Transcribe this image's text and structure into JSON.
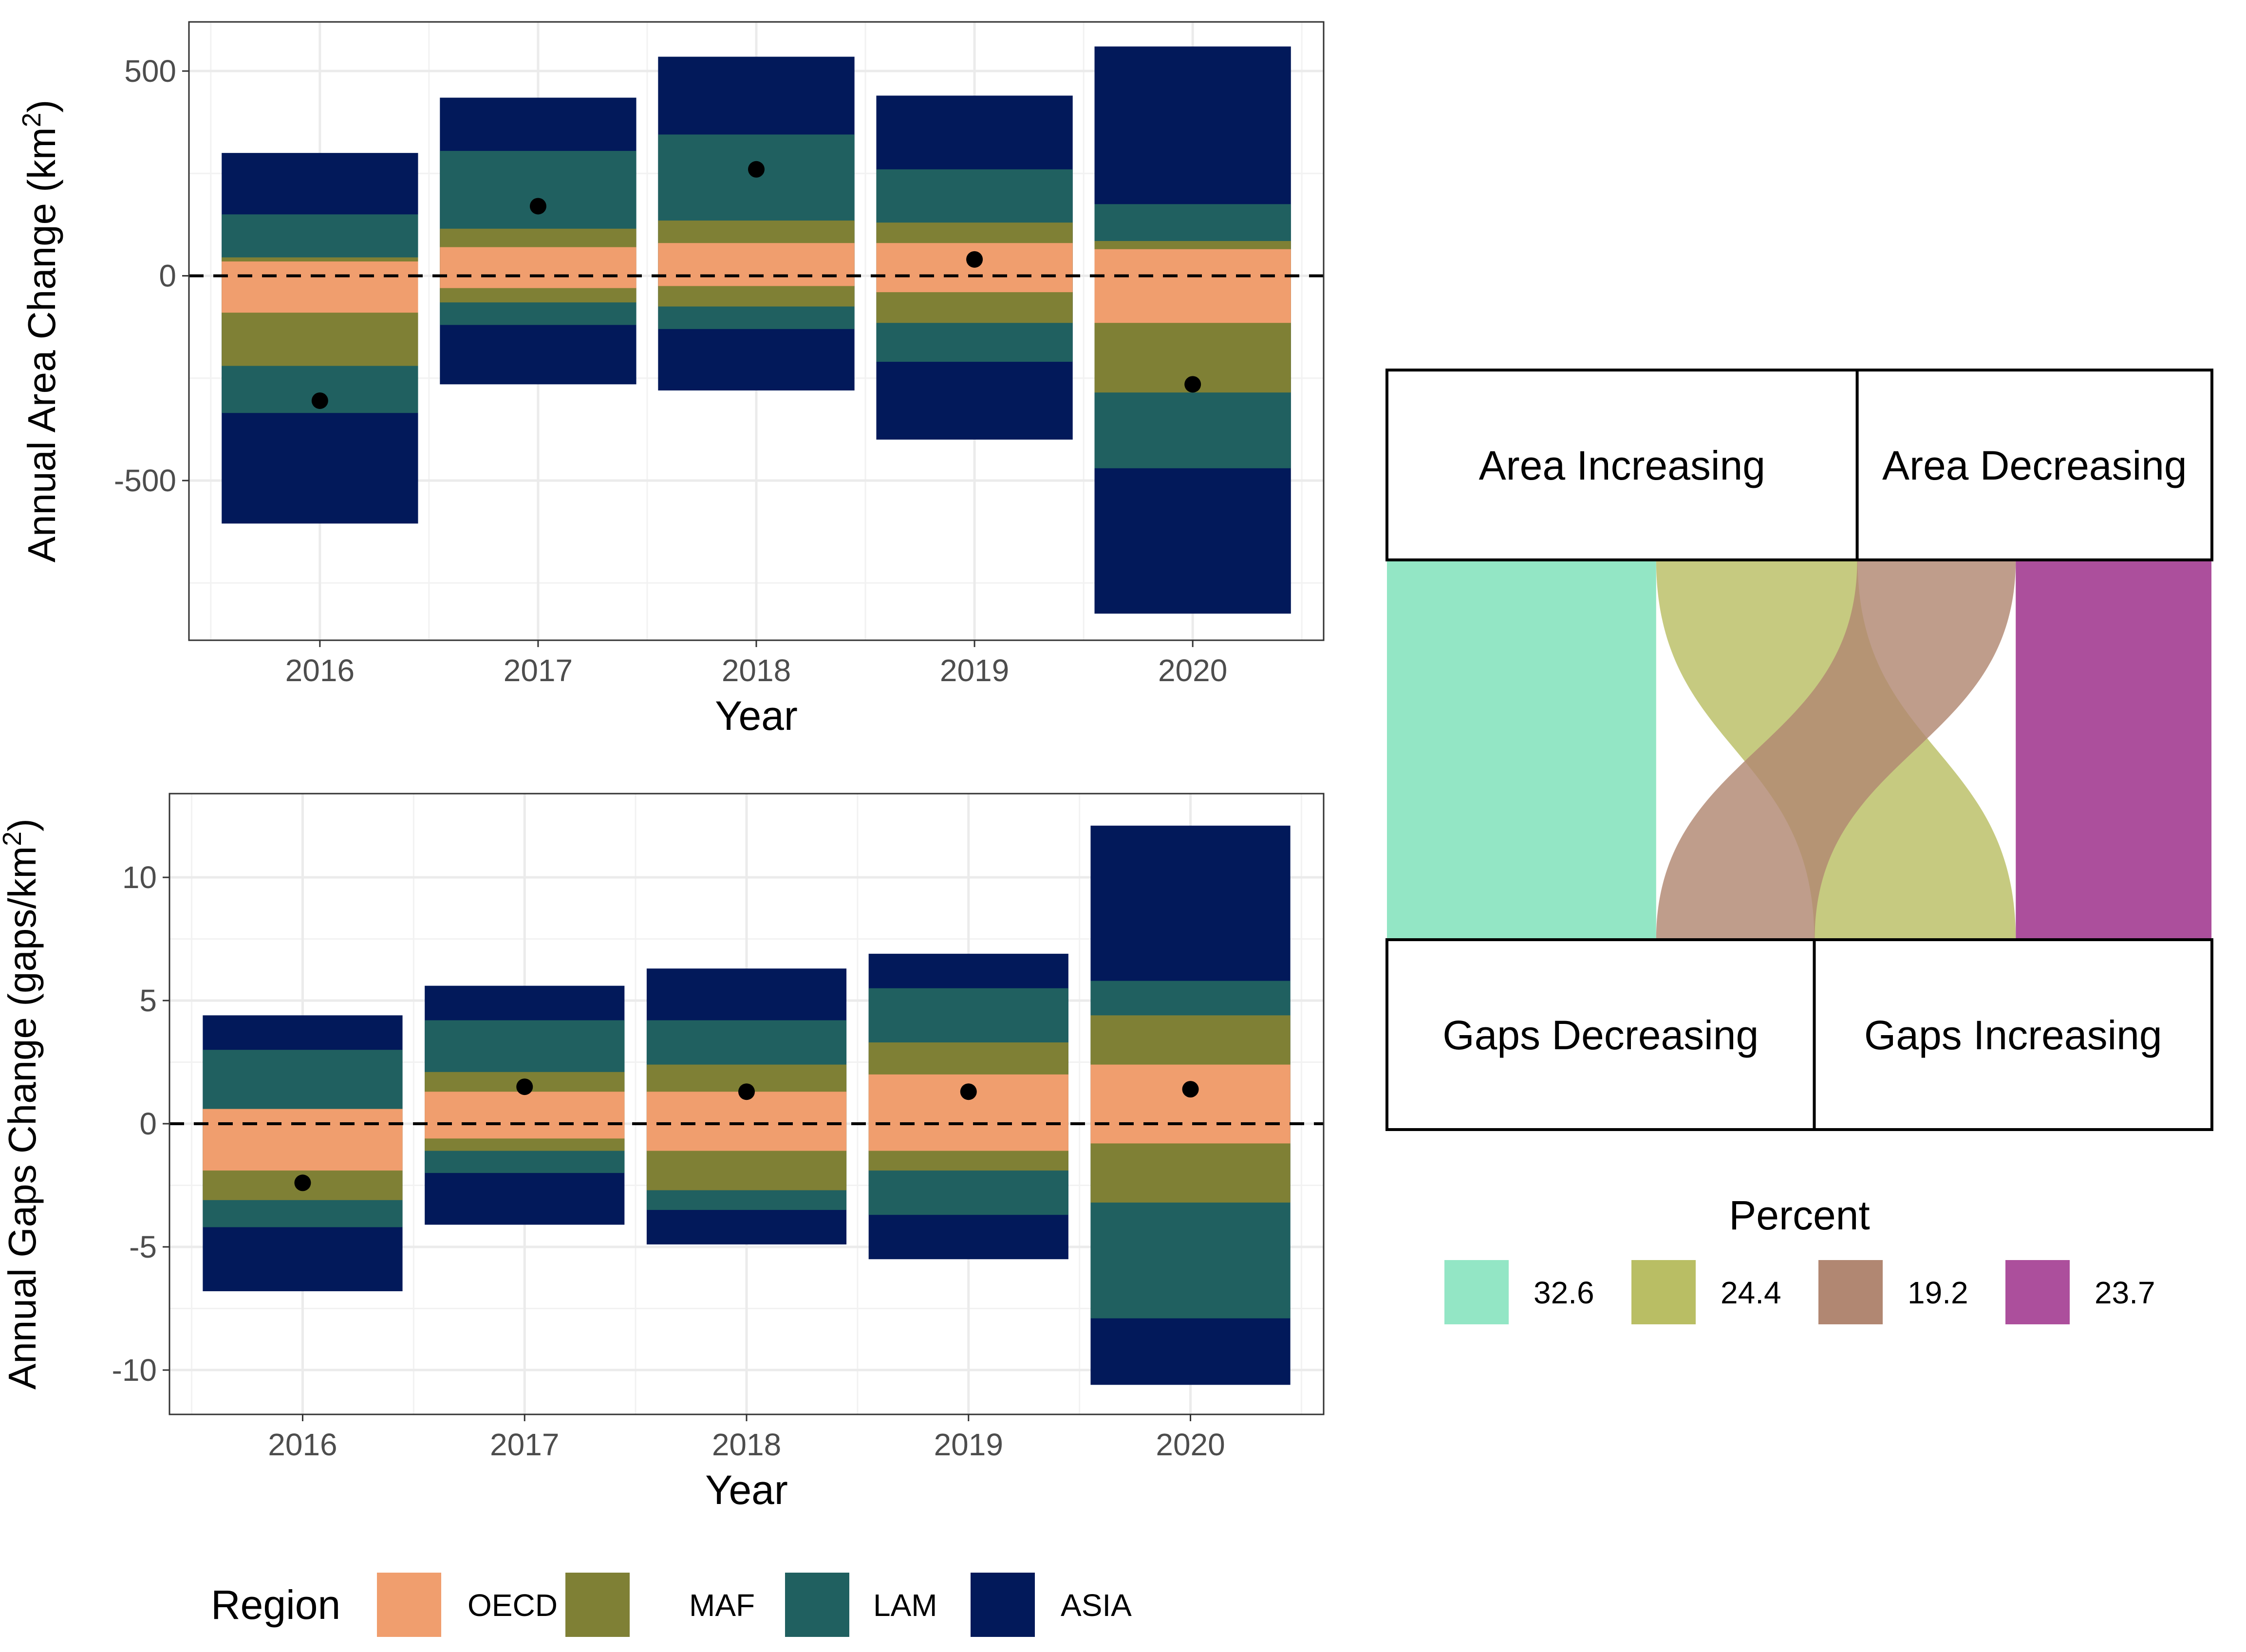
{
  "chart_data": [
    {
      "type": "bar",
      "subtype": "stacked-diverging",
      "ylabel": "Annual Area Change (km²)",
      "ylabel_text": "Annual Area Change (km",
      "ylabel_sup": "2",
      "ylabel_end": ")",
      "xlabel": "Year",
      "categories": [
        "2016",
        "2017",
        "2018",
        "2019",
        "2020"
      ],
      "ylim": [
        -890,
        620
      ],
      "yticks": [
        500,
        0,
        -500
      ],
      "ytick_labels": [
        "500",
        "0",
        "-500"
      ],
      "yminor": [
        250,
        -250,
        -750
      ],
      "reference_line": 0,
      "segments": [
        {
          "region": "OECD",
          "bottoms": [
            -90,
            -30,
            -25,
            -40,
            -115
          ],
          "tops": [
            35,
            70,
            80,
            80,
            65
          ]
        },
        {
          "region": "MAF",
          "bottoms": [
            -220,
            -65,
            -75,
            -115,
            -285
          ],
          "tops": [
            45,
            115,
            135,
            130,
            85
          ]
        },
        {
          "region": "LAM",
          "bottoms": [
            -335,
            -120,
            -130,
            -210,
            -470
          ],
          "tops": [
            150,
            305,
            345,
            260,
            175
          ]
        },
        {
          "region": "ASIA",
          "bottoms": [
            -605,
            -265,
            -280,
            -400,
            -825
          ],
          "tops": [
            300,
            435,
            535,
            440,
            560
          ]
        }
      ],
      "net": [
        -305,
        170,
        260,
        40,
        -265
      ]
    },
    {
      "type": "bar",
      "subtype": "stacked-diverging",
      "ylabel": "Annual Gaps Change (gaps/km²)",
      "ylabel_text": "Annual Gaps Change (gaps/km",
      "ylabel_sup": "2",
      "ylabel_end": ")",
      "xlabel": "Year",
      "categories": [
        "2016",
        "2017",
        "2018",
        "2019",
        "2020"
      ],
      "ylim": [
        -11.8,
        13.4
      ],
      "yticks": [
        10,
        5,
        0,
        -5,
        -10
      ],
      "ytick_labels": [
        "10",
        "5",
        "0",
        "-5",
        "-10"
      ],
      "yminor": [
        7.5,
        2.5,
        -2.5,
        -7.5
      ],
      "reference_line": 0,
      "segments": [
        {
          "region": "OECD",
          "bottoms": [
            -1.9,
            -0.6,
            -1.1,
            -1.1,
            -0.8
          ],
          "tops": [
            0.6,
            1.3,
            1.3,
            2.0,
            2.4
          ]
        },
        {
          "region": "MAF",
          "bottoms": [
            -3.1,
            -1.1,
            -2.7,
            -1.9,
            -3.2
          ],
          "tops": [
            0.6,
            2.1,
            2.4,
            3.3,
            4.4
          ]
        },
        {
          "region": "LAM",
          "bottoms": [
            -4.2,
            -2.0,
            -3.5,
            -3.7,
            -7.9
          ],
          "tops": [
            3.0,
            4.2,
            4.2,
            5.5,
            5.8
          ]
        },
        {
          "region": "ASIA",
          "bottoms": [
            -6.8,
            -4.1,
            -4.9,
            -5.5,
            -10.6
          ],
          "tops": [
            4.4,
            5.6,
            6.3,
            6.9,
            12.1
          ]
        }
      ],
      "net": [
        -2.4,
        1.5,
        1.3,
        1.3,
        1.4
      ]
    },
    {
      "type": "alluvial",
      "top_labels": [
        "Area Increasing",
        "Area Decreasing"
      ],
      "bottom_labels": [
        "Gaps Decreasing",
        "Gaps Increasing"
      ],
      "top_split": 0.57,
      "bottom_split": 0.518,
      "flows": [
        {
          "percent": "32.6",
          "value": 32.6,
          "from": "Area Increasing",
          "to": "Gaps Decreasing"
        },
        {
          "percent": "24.4",
          "value": 24.4,
          "from": "Area Increasing",
          "to": "Gaps Increasing"
        },
        {
          "percent": "19.2",
          "value": 19.2,
          "from": "Area Decreasing",
          "to": "Gaps Decreasing"
        },
        {
          "percent": "23.7",
          "value": 23.7,
          "from": "Area Decreasing",
          "to": "Gaps Increasing"
        }
      ],
      "legend_title": "Percent"
    }
  ],
  "region_legend": {
    "title": "Region",
    "items": [
      {
        "name": "OECD",
        "color": "#F09E6E"
      },
      {
        "name": "MAF",
        "color": "#7F8035"
      },
      {
        "name": "LAM",
        "color": "#206060"
      },
      {
        "name": "ASIA",
        "color": "#02195A"
      }
    ]
  },
  "percent_colors": [
    "#93E6C5",
    "#B9BE64",
    "#B18772",
    "#AC4F9C"
  ]
}
